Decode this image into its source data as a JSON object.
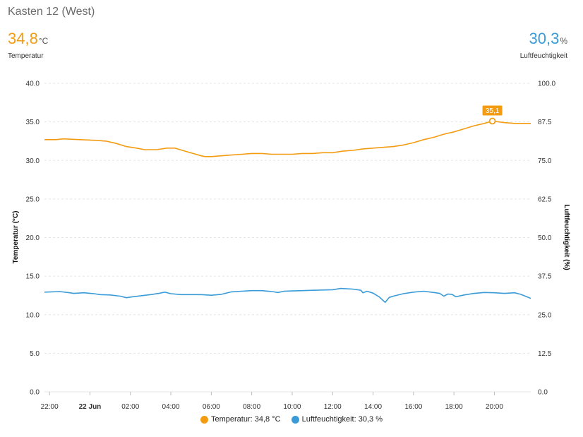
{
  "header": {
    "title": "Kasten 12 (West)",
    "temp_value": "34,8",
    "temp_unit": "°C",
    "temp_label": "Temperatur",
    "hum_value": "30,3",
    "hum_unit": "%",
    "hum_label": "Luftfeuchtigkeit"
  },
  "legend": {
    "temp": "Temperatur: 34,8 °C",
    "hum": "Luftfeuchtigkeit: 30,3 %"
  },
  "colors": {
    "temperature": "#f39c12",
    "humidity": "#3a9bd8",
    "grid": "#e5e5e5"
  },
  "chart_data": {
    "type": "line",
    "xlabels": [
      "22:00",
      "22 Jun",
      "02:00",
      "04:00",
      "06:00",
      "08:00",
      "10:00",
      "12:00",
      "14:00",
      "16:00",
      "18:00",
      "20:00"
    ],
    "xlabel_hours": [
      -2,
      0,
      2,
      4,
      6,
      8,
      10,
      12,
      14,
      16,
      18,
      20
    ],
    "xlim": [
      -2.25,
      21.8
    ],
    "y_left": {
      "label": "Temperatur (°C)",
      "ticks": [
        "0.0",
        "5.0",
        "10.0",
        "15.0",
        "20.0",
        "25.0",
        "30.0",
        "35.0",
        "40.0"
      ],
      "lim": [
        0,
        40
      ]
    },
    "y_right": {
      "label": "Luftfeuchtigkeit (%)",
      "ticks": [
        "0.0",
        "12.5",
        "25.0",
        "37.5",
        "50.0",
        "62.5",
        "75.0",
        "87.5",
        "100.0"
      ],
      "lim": [
        0,
        100
      ]
    },
    "grid": true,
    "legend_position": "bottom",
    "annotation": {
      "series": "Temperatur",
      "x": 19.9,
      "y": 35.1,
      "text": "35,1"
    },
    "series": [
      {
        "name": "Temperatur",
        "axis": "left",
        "x": [
          -2.25,
          -1.7,
          -1.3,
          -0.5,
          0.3,
          0.8,
          1.3,
          1.8,
          2.3,
          2.7,
          3.3,
          3.8,
          4.2,
          4.7,
          5.1,
          5.5,
          5.7,
          6.0,
          6.5,
          7.0,
          7.5,
          8.0,
          8.5,
          9.0,
          9.5,
          10.0,
          10.5,
          11.0,
          11.5,
          12.0,
          12.5,
          13.0,
          13.5,
          14.0,
          14.5,
          15.0,
          15.5,
          16.0,
          16.5,
          17.0,
          17.5,
          18.0,
          18.5,
          19.0,
          19.5,
          19.9,
          20.5,
          21.0,
          21.8
        ],
        "y": [
          32.7,
          32.7,
          32.8,
          32.7,
          32.6,
          32.5,
          32.2,
          31.8,
          31.6,
          31.4,
          31.4,
          31.6,
          31.6,
          31.2,
          30.9,
          30.6,
          30.5,
          30.5,
          30.6,
          30.7,
          30.8,
          30.9,
          30.9,
          30.8,
          30.8,
          30.8,
          30.9,
          30.9,
          31.0,
          31.0,
          31.2,
          31.3,
          31.5,
          31.6,
          31.7,
          31.8,
          32.0,
          32.3,
          32.7,
          33.0,
          33.4,
          33.7,
          34.1,
          34.5,
          34.8,
          35.1,
          34.9,
          34.8,
          34.8
        ]
      },
      {
        "name": "Luftfeuchtigkeit",
        "axis": "right",
        "x": [
          -2.25,
          -1.5,
          -1.1,
          -0.8,
          -0.3,
          0.2,
          0.5,
          1.0,
          1.5,
          1.8,
          2.1,
          2.6,
          3.0,
          3.4,
          3.7,
          4.0,
          4.5,
          5.0,
          5.5,
          6.0,
          6.5,
          7.0,
          7.5,
          8.0,
          8.5,
          9.0,
          9.3,
          9.6,
          10.0,
          10.5,
          11.0,
          11.5,
          12.0,
          12.4,
          13.0,
          13.4,
          13.5,
          13.7,
          14.0,
          14.3,
          14.6,
          14.8,
          15.0,
          15.5,
          16.0,
          16.5,
          17.0,
          17.3,
          17.5,
          17.7,
          17.9,
          18.1,
          18.5,
          19.0,
          19.5,
          20.0,
          20.5,
          21.0,
          21.3,
          21.8
        ],
        "y": [
          32.3,
          32.5,
          32.2,
          31.9,
          32.1,
          31.8,
          31.5,
          31.4,
          31.0,
          30.5,
          30.8,
          31.2,
          31.5,
          31.9,
          32.3,
          31.8,
          31.5,
          31.5,
          31.5,
          31.3,
          31.6,
          32.4,
          32.6,
          32.8,
          32.8,
          32.5,
          32.2,
          32.6,
          32.7,
          32.8,
          32.9,
          33.0,
          33.1,
          33.5,
          33.3,
          32.9,
          32.1,
          32.6,
          32.0,
          30.8,
          29.0,
          30.6,
          31.0,
          31.8,
          32.3,
          32.6,
          32.2,
          31.9,
          31.0,
          31.7,
          31.6,
          30.8,
          31.4,
          31.9,
          32.2,
          32.1,
          31.9,
          32.1,
          31.6,
          30.3
        ]
      }
    ]
  }
}
